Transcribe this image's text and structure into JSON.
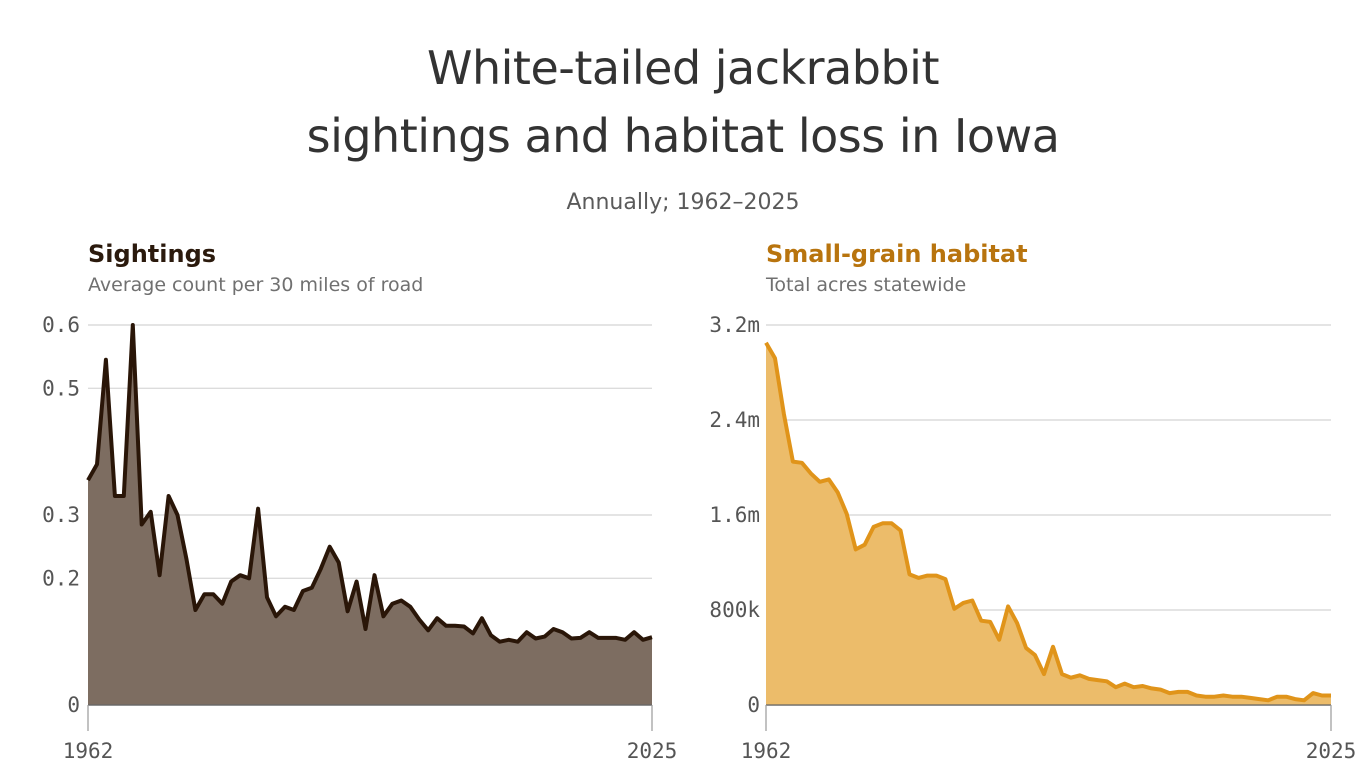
{
  "title_line1": "White-tailed jackrabbit",
  "title_line2": "sightings and habitat loss in Iowa",
  "subtitle": "Annually; 1962–2025",
  "colors": {
    "sightings_line": "#2a1608",
    "sightings_fill": "#7d6d61",
    "habitat_line": "#e0941a",
    "habitat_fill": "#ecbc6a",
    "grid": "#dcdcdc",
    "axis": "#666666"
  },
  "chart_data": [
    {
      "type": "area",
      "title": "Sightings",
      "subtitle": "Average count per 30 miles of road",
      "xlabel": "",
      "ylabel": "",
      "x_start": 1962,
      "x_end": 2025,
      "ylim": [
        0,
        0.6
      ],
      "y_ticks": [
        0,
        0.2,
        0.3,
        0.5,
        0.6
      ],
      "y_tick_labels": [
        "0",
        "0.2",
        "0.3",
        "0.5",
        "0.6"
      ],
      "x_tick_labels": [
        "1962",
        "2025"
      ],
      "grid": true,
      "values": [
        0.355,
        0.38,
        0.545,
        0.33,
        0.33,
        0.6,
        0.285,
        0.305,
        0.205,
        0.33,
        0.3,
        0.23,
        0.15,
        0.175,
        0.175,
        0.16,
        0.195,
        0.205,
        0.2,
        0.31,
        0.17,
        0.14,
        0.155,
        0.15,
        0.18,
        0.185,
        0.215,
        0.25,
        0.225,
        0.148,
        0.195,
        0.12,
        0.205,
        0.14,
        0.16,
        0.165,
        0.155,
        0.135,
        0.118,
        0.137,
        0.125,
        0.125,
        0.124,
        0.113,
        0.137,
        0.11,
        0.1,
        0.103,
        0.1,
        0.115,
        0.105,
        0.108,
        0.12,
        0.115,
        0.105,
        0.106,
        0.115,
        0.106,
        0.106,
        0.106,
        0.103,
        0.115,
        0.103,
        0.107
      ]
    },
    {
      "type": "area",
      "title": "Small-grain habitat",
      "subtitle": "Total acres statewide",
      "xlabel": "",
      "ylabel": "",
      "x_start": 1962,
      "x_end": 2025,
      "ylim": [
        0,
        3200000
      ],
      "y_ticks": [
        0,
        800000,
        1600000,
        2400000,
        3200000
      ],
      "y_tick_labels": [
        "0",
        "800k",
        "1.6m",
        "2.4m",
        "3.2m"
      ],
      "x_tick_labels": [
        "1962",
        "2025"
      ],
      "grid": true,
      "values": [
        3050000,
        2920000,
        2450000,
        2050000,
        2040000,
        1950000,
        1880000,
        1900000,
        1790000,
        1610000,
        1310000,
        1350000,
        1500000,
        1530000,
        1530000,
        1470000,
        1100000,
        1070000,
        1090000,
        1090000,
        1060000,
        810000,
        860000,
        880000,
        710000,
        700000,
        550000,
        830000,
        690000,
        480000,
        420000,
        260000,
        490000,
        260000,
        230000,
        250000,
        220000,
        210000,
        200000,
        150000,
        180000,
        150000,
        160000,
        140000,
        130000,
        100000,
        110000,
        110000,
        80000,
        70000,
        70000,
        80000,
        70000,
        70000,
        60000,
        50000,
        40000,
        70000,
        70000,
        50000,
        40000,
        100000,
        80000,
        80000
      ]
    }
  ]
}
